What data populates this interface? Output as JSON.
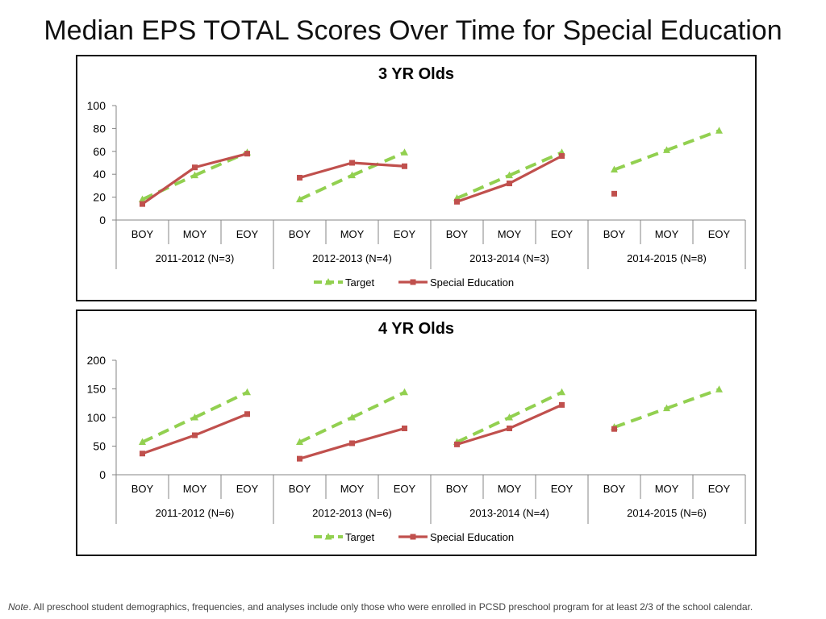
{
  "title": "Median EPS TOTAL Scores Over Time for Special Education",
  "footnote": {
    "label": "Note",
    "text": ". All preschool student demographics, frequencies, and analyses include only those who were enrolled in PCSD preschool program for at least 2/3 of the school calendar."
  },
  "colors": {
    "target": "#92d050",
    "special_education": "#c0504d",
    "axis": "#868686"
  },
  "chart_data": [
    {
      "type": "line",
      "title": "3 YR Olds",
      "ylim": [
        0,
        100
      ],
      "yticks": [
        0,
        20,
        40,
        60,
        80,
        100
      ],
      "ytick_labels": [
        "0",
        "20",
        "40",
        "60",
        "80",
        "100"
      ],
      "grid": false,
      "legend_position": "bottom",
      "groups": [
        {
          "label": "2011-2012 (N=3)",
          "categories": [
            "BOY",
            "MOY",
            "EOY"
          ]
        },
        {
          "label": "2012-2013 (N=4)",
          "categories": [
            "BOY",
            "MOY",
            "EOY"
          ]
        },
        {
          "label": "2013-2014 (N=3)",
          "categories": [
            "BOY",
            "MOY",
            "EOY"
          ]
        },
        {
          "label": "2014-2015 (N=8)",
          "categories": [
            "BOY",
            "MOY",
            "EOY"
          ]
        }
      ],
      "series": [
        {
          "name": "Target",
          "style": "dashed",
          "marker": "triangle",
          "values": [
            [
              18,
              39,
              59
            ],
            [
              18,
              39,
              59
            ],
            [
              19,
              39,
              59
            ],
            [
              44,
              61,
              78
            ]
          ]
        },
        {
          "name": "Special Education",
          "style": "solid",
          "marker": "square",
          "values": [
            [
              14,
              46,
              58
            ],
            [
              37,
              50,
              47
            ],
            [
              16,
              32,
              56
            ],
            [
              23,
              null,
              null
            ]
          ]
        }
      ]
    },
    {
      "type": "line",
      "title": "4 YR Olds",
      "ylim": [
        0,
        200
      ],
      "yticks": [
        0,
        50,
        100,
        150,
        200
      ],
      "ytick_labels": [
        "0",
        "50",
        "100",
        "150",
        "200"
      ],
      "grid": false,
      "legend_position": "bottom",
      "groups": [
        {
          "label": "2011-2012 (N=6)",
          "categories": [
            "BOY",
            "MOY",
            "EOY"
          ]
        },
        {
          "label": "2012-2013 (N=6)",
          "categories": [
            "BOY",
            "MOY",
            "EOY"
          ]
        },
        {
          "label": "2013-2014 (N=4)",
          "categories": [
            "BOY",
            "MOY",
            "EOY"
          ]
        },
        {
          "label": "2014-2015 (N=6)",
          "categories": [
            "BOY",
            "MOY",
            "EOY"
          ]
        }
      ],
      "series": [
        {
          "name": "Target",
          "style": "dashed",
          "marker": "triangle",
          "values": [
            [
              57,
              100,
              144
            ],
            [
              57,
              100,
              144
            ],
            [
              57,
              100,
              144
            ],
            [
              83,
              116,
              149
            ]
          ]
        },
        {
          "name": "Special Education",
          "style": "solid",
          "marker": "square",
          "values": [
            [
              37,
              69,
              106
            ],
            [
              28,
              55,
              81
            ],
            [
              53,
              81,
              122
            ],
            [
              80,
              null,
              null
            ]
          ]
        }
      ]
    }
  ]
}
